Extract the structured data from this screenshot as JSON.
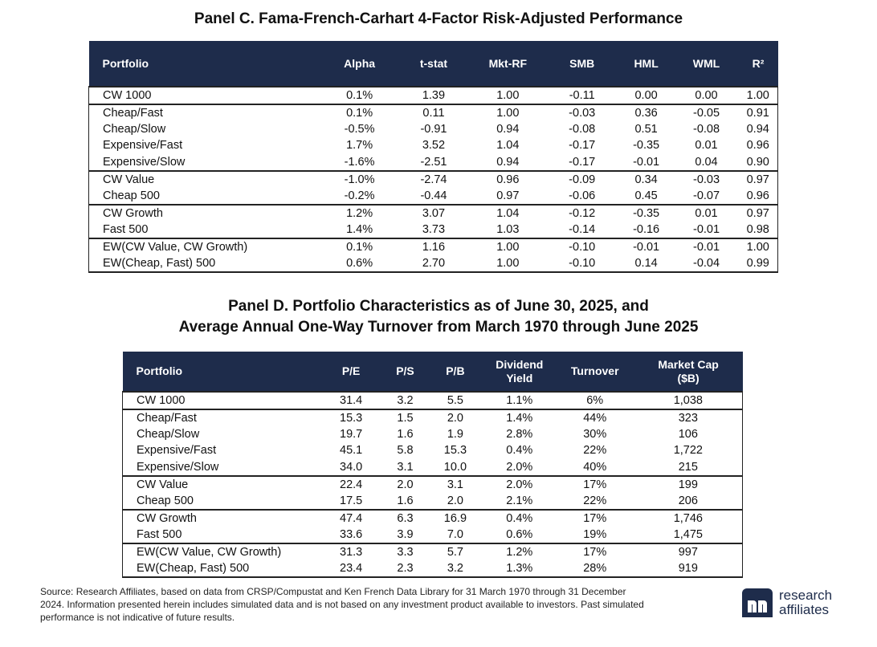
{
  "panel_c": {
    "title": "Panel C. Fama-French-Carhart 4-Factor Risk-Adjusted Performance",
    "headers": [
      "Portfolio",
      "Alpha",
      "t-stat",
      "Mkt-RF",
      "SMB",
      "HML",
      "WML",
      "R²"
    ],
    "groups": [
      [
        [
          "CW 1000",
          "0.1%",
          "1.39",
          "1.00",
          "-0.11",
          "0.00",
          "0.00",
          "1.00"
        ]
      ],
      [
        [
          "Cheap/Fast",
          "0.1%",
          "0.11",
          "1.00",
          "-0.03",
          "0.36",
          "-0.05",
          "0.91"
        ],
        [
          "Cheap/Slow",
          "-0.5%",
          "-0.91",
          "0.94",
          "-0.08",
          "0.51",
          "-0.08",
          "0.94"
        ],
        [
          "Expensive/Fast",
          "1.7%",
          "3.52",
          "1.04",
          "-0.17",
          "-0.35",
          "0.01",
          "0.96"
        ],
        [
          "Expensive/Slow",
          "-1.6%",
          "-2.51",
          "0.94",
          "-0.17",
          "-0.01",
          "0.04",
          "0.90"
        ]
      ],
      [
        [
          "CW Value",
          "-1.0%",
          "-2.74",
          "0.96",
          "-0.09",
          "0.34",
          "-0.03",
          "0.97"
        ],
        [
          "Cheap 500",
          "-0.2%",
          "-0.44",
          "0.97",
          "-0.06",
          "0.45",
          "-0.07",
          "0.96"
        ]
      ],
      [
        [
          "CW Growth",
          "1.2%",
          "3.07",
          "1.04",
          "-0.12",
          "-0.35",
          "0.01",
          "0.97"
        ],
        [
          "Fast 500",
          "1.4%",
          "3.73",
          "1.03",
          "-0.14",
          "-0.16",
          "-0.01",
          "0.98"
        ]
      ],
      [
        [
          "EW(CW Value, CW Growth)",
          "0.1%",
          "1.16",
          "1.00",
          "-0.10",
          "-0.01",
          "-0.01",
          "1.00"
        ],
        [
          "EW(Cheap, Fast) 500",
          "0.6%",
          "2.70",
          "1.00",
          "-0.10",
          "0.14",
          "-0.04",
          "0.99"
        ]
      ]
    ]
  },
  "panel_d": {
    "title_line1": "Panel D. Portfolio Characteristics as of June 30, 2025, and",
    "title_line2": "Average Annual One-Way Turnover from March 1970 through June 2025",
    "headers": [
      [
        "Portfolio"
      ],
      [
        "P/E"
      ],
      [
        "P/S"
      ],
      [
        "P/B"
      ],
      [
        "Dividend",
        "Yield"
      ],
      [
        "Turnover"
      ],
      [
        "Market Cap",
        "($B)"
      ]
    ],
    "groups": [
      [
        [
          "CW 1000",
          "31.4",
          "3.2",
          "5.5",
          "1.1%",
          "6%",
          "1,038"
        ]
      ],
      [
        [
          "Cheap/Fast",
          "15.3",
          "1.5",
          "2.0",
          "1.4%",
          "44%",
          "323"
        ],
        [
          "Cheap/Slow",
          "19.7",
          "1.6",
          "1.9",
          "2.8%",
          "30%",
          "106"
        ],
        [
          "Expensive/Fast",
          "45.1",
          "5.8",
          "15.3",
          "0.4%",
          "22%",
          "1,722"
        ],
        [
          "Expensive/Slow",
          "34.0",
          "3.1",
          "10.0",
          "2.0%",
          "40%",
          "215"
        ]
      ],
      [
        [
          "CW Value",
          "22.4",
          "2.0",
          "3.1",
          "2.0%",
          "17%",
          "199"
        ],
        [
          "Cheap 500",
          "17.5",
          "1.6",
          "2.0",
          "2.1%",
          "22%",
          "206"
        ]
      ],
      [
        [
          "CW Growth",
          "47.4",
          "6.3",
          "16.9",
          "0.4%",
          "17%",
          "1,746"
        ],
        [
          "Fast 500",
          "33.6",
          "3.9",
          "7.0",
          "0.6%",
          "19%",
          "1,475"
        ]
      ],
      [
        [
          "EW(CW Value, CW Growth)",
          "31.3",
          "3.3",
          "5.7",
          "1.2%",
          "17%",
          "997"
        ],
        [
          "EW(Cheap, Fast) 500",
          "23.4",
          "2.3",
          "3.2",
          "1.3%",
          "28%",
          "919"
        ]
      ]
    ]
  },
  "footnote": "Source: Research Affiliates, based on data from CRSP/Compustat and Ken French Data Library for 31 March 1970 through 31 December 2024. Information presented herein includes simulated data and is not based on any investment product available to investors. Past simulated performance is not indicative of future results.",
  "logo": {
    "line1": "research",
    "line2": "affiliates",
    "icon": "research-affiliates-logo-icon",
    "color": "#1e2c4b"
  }
}
